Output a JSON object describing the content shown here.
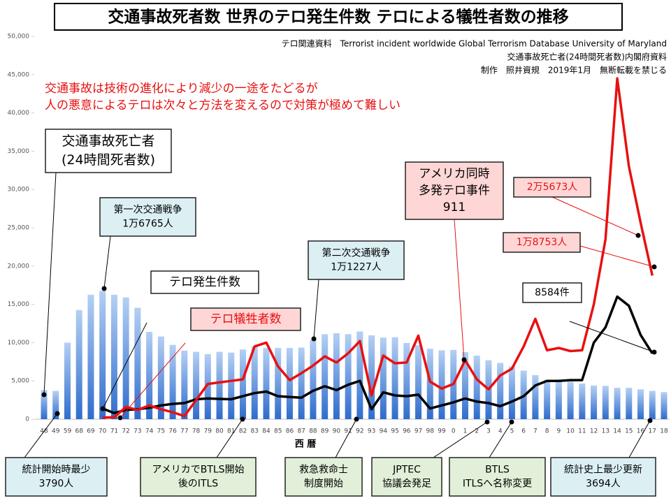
{
  "chart_data": {
    "type": "bar-line",
    "title": "交通事故死者数 世界のテロ発生件数 テロによる犠牲者数の推移",
    "sources": [
      "テロ関連資料　Terrorist incident worldwide Global Terrorism Database University of Maryland",
      "交通事故死亡者(24時間死者数)内閣府資料",
      "制作　照井資規　2019年1月　無断転載を禁じる"
    ],
    "note": [
      "交通事故は技術の進化により減少の一途をたどるが",
      "人の悪意によるテロは次々と方法を変えるので対策が極めて難しい"
    ],
    "x_label": "西 暦",
    "categories": [
      "48",
      "49",
      "59",
      "68",
      "69",
      "70",
      "71",
      "72",
      "73",
      "74",
      "75",
      "76",
      "77",
      "78",
      "79",
      "80",
      "81",
      "82",
      "83",
      "84",
      "85",
      "86",
      "87",
      "88",
      "89",
      "90",
      "91",
      "92",
      "93",
      "94",
      "95",
      "96",
      "97",
      "98",
      "99",
      "0",
      "1",
      "2",
      "3",
      "4",
      "5",
      "6",
      "7",
      "8",
      "9",
      "10",
      "11",
      "12",
      "13",
      "14",
      "15",
      "16",
      "17",
      "18"
    ],
    "series": [
      {
        "name": "交通事故死亡者",
        "kind": "bar",
        "color": "#4a86d8",
        "values": [
          3790,
          3700,
          10000,
          14250,
          16250,
          16765,
          16250,
          15900,
          14550,
          11400,
          10800,
          9700,
          8950,
          8800,
          8500,
          8800,
          8700,
          9100,
          9500,
          9300,
          9300,
          9300,
          9350,
          10350,
          11100,
          11227,
          11100,
          11450,
          10950,
          10650,
          10700,
          9950,
          9650,
          9200,
          9000,
          9050,
          8750,
          8300,
          7700,
          7350,
          6900,
          6350,
          5750,
          5150,
          4950,
          4900,
          4650,
          4400,
          4350,
          4100,
          4100,
          3900,
          3694,
          3530
        ]
      },
      {
        "name": "テロ発生件数",
        "kind": "line",
        "color": "#000000",
        "values": [
          null,
          null,
          null,
          null,
          null,
          1400,
          800,
          1200,
          1300,
          1500,
          1800,
          2000,
          2100,
          2600,
          2700,
          2650,
          2600,
          3000,
          3400,
          3600,
          3000,
          2900,
          2800,
          3700,
          4300,
          3800,
          4500,
          5000,
          1300,
          3500,
          3100,
          3000,
          3200,
          1400,
          1800,
          2200,
          2700,
          2300,
          2100,
          1700,
          2300,
          3000,
          4400,
          5000,
          5000,
          5100,
          5100,
          10000,
          12000,
          16000,
          14800,
          11000,
          8584,
          null
        ]
      },
      {
        "name": "テロ犠牲者数",
        "kind": "line",
        "color": "#e81010",
        "values": [
          null,
          null,
          null,
          null,
          null,
          200,
          250,
          1600,
          1200,
          1800,
          1300,
          900,
          400,
          2500,
          4600,
          4800,
          5000,
          5200,
          9500,
          10000,
          6900,
          5100,
          6000,
          7000,
          8200,
          7400,
          8600,
          10200,
          3100,
          8300,
          7300,
          7400,
          10900,
          4900,
          4000,
          4600,
          7700,
          5200,
          3900,
          5700,
          6600,
          9500,
          13100,
          9000,
          9300,
          8900,
          9000,
          15000,
          23500,
          44500,
          33000,
          25673,
          18753,
          null
        ]
      }
    ],
    "annotations": [
      [
        "(24時間死者数)"
      ],
      [
        "第一次交通戦争",
        "1万6765人"
      ],
      [
        "第二次交通戦争",
        "1万1227人"
      ],
      [
        "アメリカ同時",
        "多発テロ事件",
        "911"
      ],
      [
        "2万5673人"
      ],
      [
        "1万8753人"
      ],
      [
        "8584件"
      ],
      [
        "統計開始時最少",
        "3790人"
      ],
      [
        "アメリカでBTLS開始",
        "後のITLS"
      ],
      [
        "救急救命士",
        "制度開始"
      ],
      [
        "JPTEC",
        "協議会発足"
      ],
      [
        "BTLS",
        "ITLSへ名称変更"
      ],
      [
        "統計史上最少更新",
        "3694人"
      ]
    ],
    "ylim": [
      0,
      50000
    ],
    "yticks": [
      0,
      {
        "value": 5000,
        "label": "5,000"
      },
      {
        "value": 10000,
        "label": "10,000"
      },
      {
        "value": 15000,
        "label": "15,000"
      },
      {
        "value": 20000,
        "label": "20,000"
      },
      {
        "value": 25000,
        "label": "25,000"
      },
      {
        "value": 30000,
        "label": "30,000"
      },
      {
        "value": 35000,
        "label": "35,000"
      },
      {
        "value": 40000,
        "label": "40,000"
      },
      {
        "value": 45000,
        "label": "45,000"
      },
      {
        "value": 50000,
        "label": "50,000"
      }
    ]
  }
}
